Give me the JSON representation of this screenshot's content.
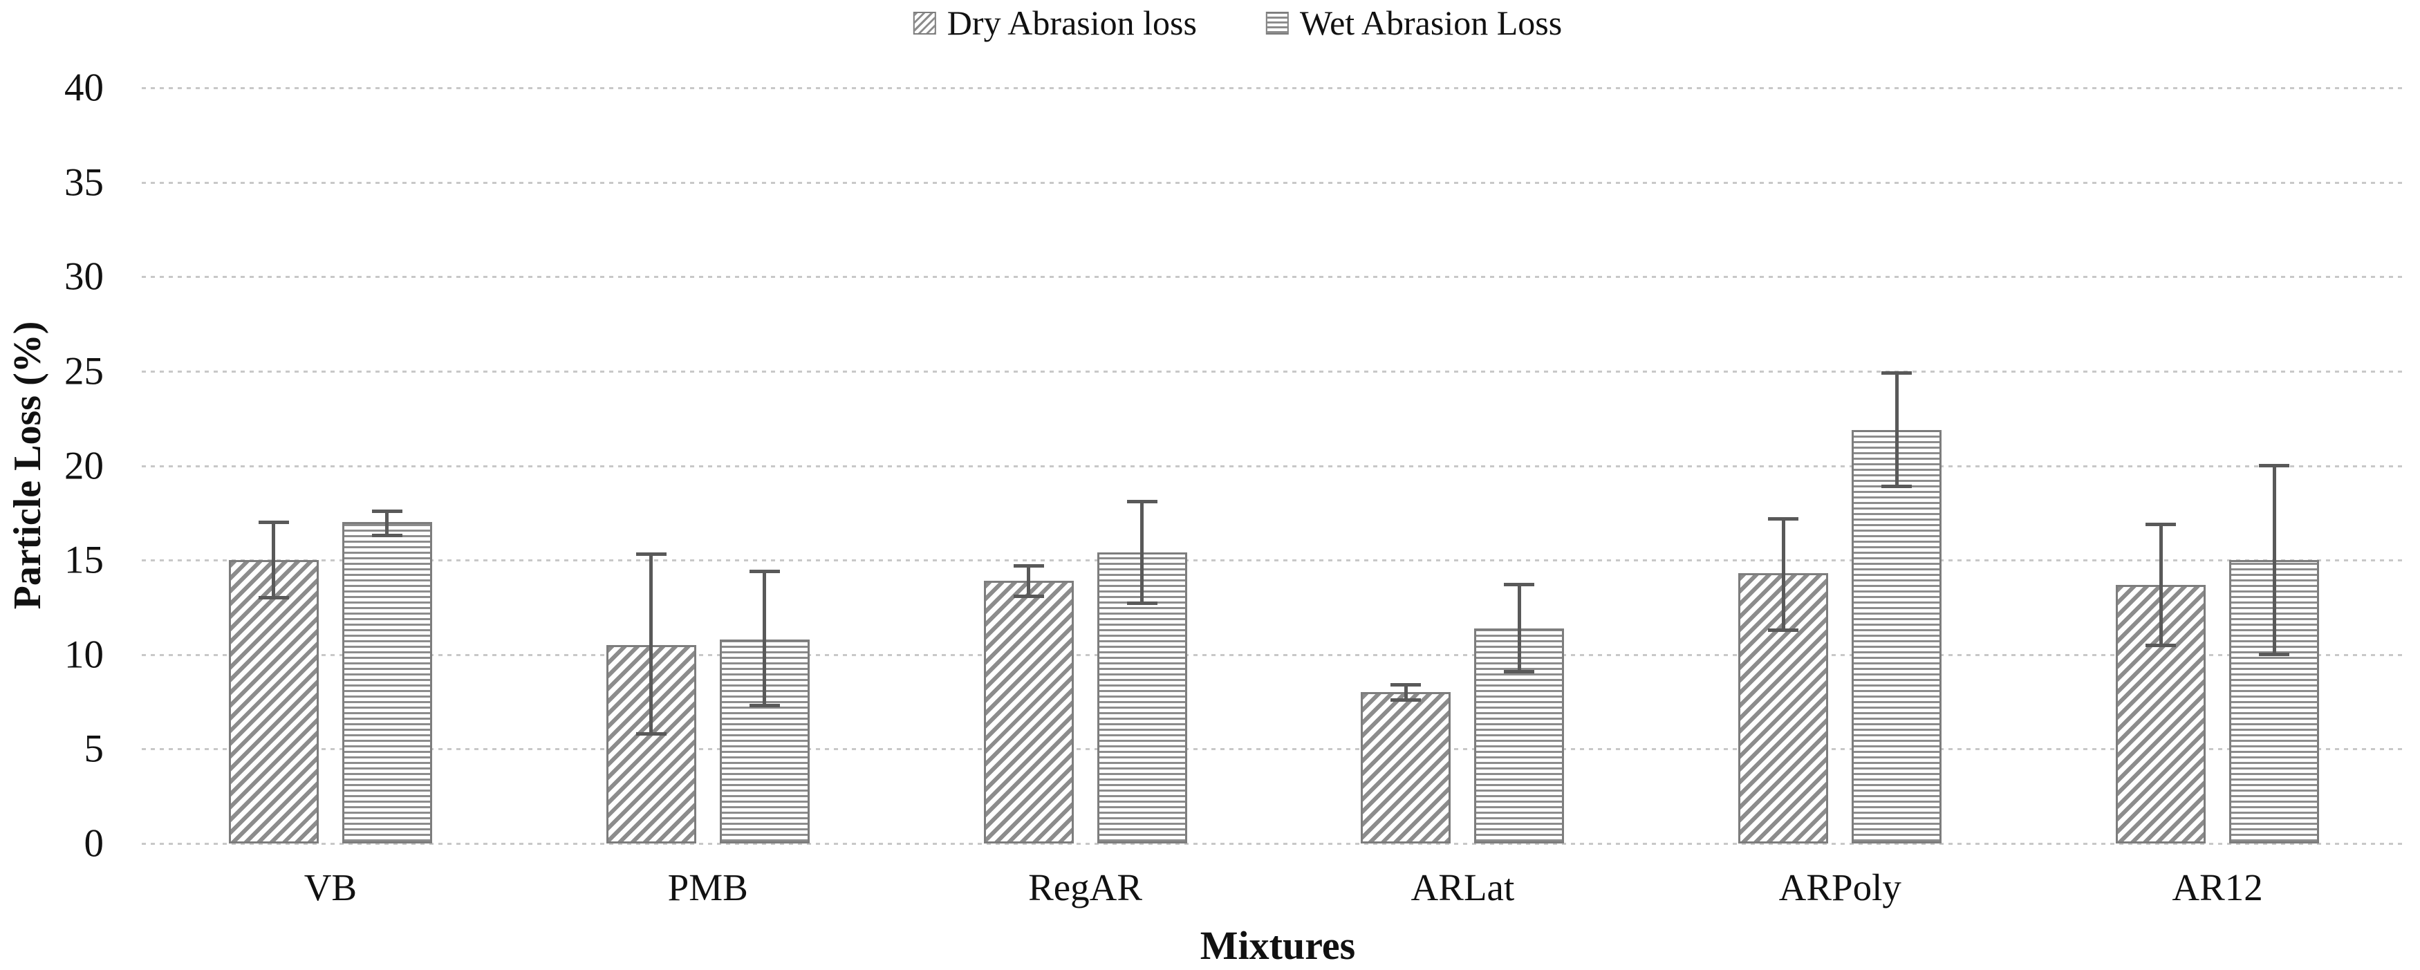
{
  "chart_data": {
    "type": "bar",
    "categories": [
      "VB",
      "PMB",
      "RegAR",
      "ARLat",
      "ARPoly",
      "AR12"
    ],
    "series": [
      {
        "name": "Dry Abrasion loss",
        "hatch": "diagonal",
        "values": [
          15.0,
          10.5,
          13.9,
          8.0,
          14.3,
          13.7
        ],
        "err_up": [
          2.0,
          4.8,
          0.8,
          0.4,
          2.9,
          3.2
        ],
        "err_down": [
          2.0,
          4.7,
          0.8,
          0.4,
          3.0,
          3.2
        ]
      },
      {
        "name": "Wet Abrasion Loss",
        "hatch": "horizontal",
        "values": [
          17.0,
          10.8,
          15.4,
          11.4,
          21.9,
          15.0
        ],
        "err_up": [
          0.6,
          3.6,
          2.7,
          2.3,
          3.0,
          5.0
        ],
        "err_down": [
          0.7,
          3.5,
          2.7,
          2.3,
          3.0,
          5.0
        ]
      }
    ],
    "xlabel": "Mixtures",
    "ylabel": "Particle Loss (%)",
    "ylim": [
      0,
      40
    ],
    "yticks": [
      0,
      5,
      10,
      15,
      20,
      25,
      30,
      35,
      40
    ],
    "grid": "horizontal dotted gridlines",
    "legend_position": "top-center",
    "error_bars": true
  },
  "colors": {
    "bar_border": "#7d7d7d",
    "hatch": "#8c8c8c",
    "error_bar": "#595959",
    "gridline": "#c8c8c8",
    "text": "#111111"
  }
}
